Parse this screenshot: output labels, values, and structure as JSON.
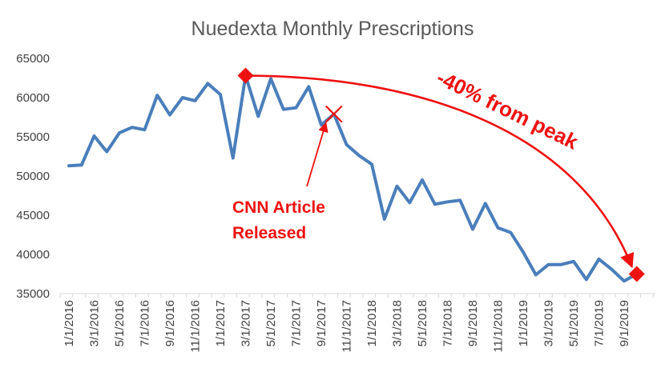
{
  "chart_data": {
    "type": "line",
    "title": "Nuedexta Monthly Prescriptions",
    "xlabel": "",
    "ylabel": "",
    "ylim": [
      35000,
      65000
    ],
    "yticks": [
      35000,
      40000,
      45000,
      50000,
      55000,
      60000,
      65000
    ],
    "ytick_labels": [
      "35000",
      "40000",
      "45000",
      "50000",
      "55000",
      "60000",
      "65000"
    ],
    "xtick_labels": [
      "1/1/2016",
      "3/1/2016",
      "5/1/2016",
      "7/1/2016",
      "9/1/2016",
      "11/1/2016",
      "1/1/2017",
      "3/1/2017",
      "5/1/2017",
      "7/1/2017",
      "9/1/2017",
      "11/1/2017",
      "1/1/2018",
      "3/1/2018",
      "5/1/2018",
      "7/1/2018",
      "9/1/2018",
      "11/1/2018",
      "1/1/2019",
      "3/1/2019",
      "5/1/2019",
      "7/1/2019",
      "9/1/2019"
    ],
    "series": [
      {
        "name": "Monthly Prescriptions",
        "color": "#4a7ebb",
        "values": [
          51300,
          51400,
          55100,
          53100,
          55500,
          56200,
          55900,
          60300,
          57800,
          60000,
          59600,
          61800,
          60400,
          52300,
          62800,
          57600,
          62400,
          58500,
          58700,
          61400,
          56500,
          57900,
          54000,
          52600,
          51500,
          44500,
          48700,
          46600,
          49500,
          46400,
          46700,
          46900,
          43200,
          46500,
          43400,
          42800,
          40300,
          37400,
          38700,
          38700,
          39100,
          36800,
          39400,
          38100,
          36600,
          37500
        ]
      }
    ],
    "annotations": [
      {
        "name": "cnn-article",
        "lines": [
          "CNN Article",
          "Released"
        ],
        "target_index": 21,
        "color": "#ee1111",
        "marker": "x"
      },
      {
        "name": "peak-decline",
        "text": "-40% from peak",
        "from_index": 14,
        "to_index": 45,
        "color": "#ee1111",
        "marker": "diamond"
      }
    ]
  }
}
